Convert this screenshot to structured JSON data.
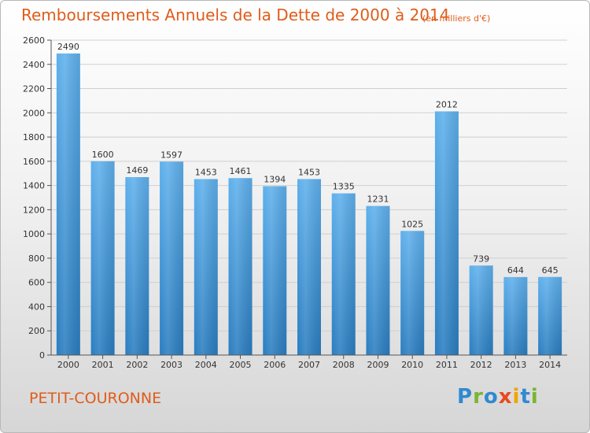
{
  "header": {
    "title": "Remboursements Annuels de la Dette de 2000 à 2014",
    "subtitle": "(en milliers d'€)"
  },
  "footer": {
    "commune": "PETIT-COURONNE",
    "logo_letters": [
      "P",
      "r",
      "o",
      "x",
      "i",
      "t",
      "i"
    ]
  },
  "colors": {
    "title": "#e05c1b",
    "bar_top": "#5fb0ec",
    "bar_bottom": "#2a7dc0",
    "grid": "#cfcfcf",
    "axis": "#555555"
  },
  "chart_data": {
    "type": "bar",
    "categories": [
      "2000",
      "2001",
      "2002",
      "2003",
      "2004",
      "2005",
      "2006",
      "2007",
      "2008",
      "2009",
      "2010",
      "2011",
      "2012",
      "2013",
      "2014"
    ],
    "values": [
      2490,
      1600,
      1469,
      1597,
      1453,
      1461,
      1394,
      1453,
      1335,
      1231,
      1025,
      2012,
      739,
      644,
      645
    ],
    "ylim": [
      0,
      2600
    ],
    "yticks": [
      0,
      200,
      400,
      600,
      800,
      1000,
      1200,
      1400,
      1600,
      1800,
      2000,
      2200,
      2400,
      2600
    ],
    "grid": true
  }
}
